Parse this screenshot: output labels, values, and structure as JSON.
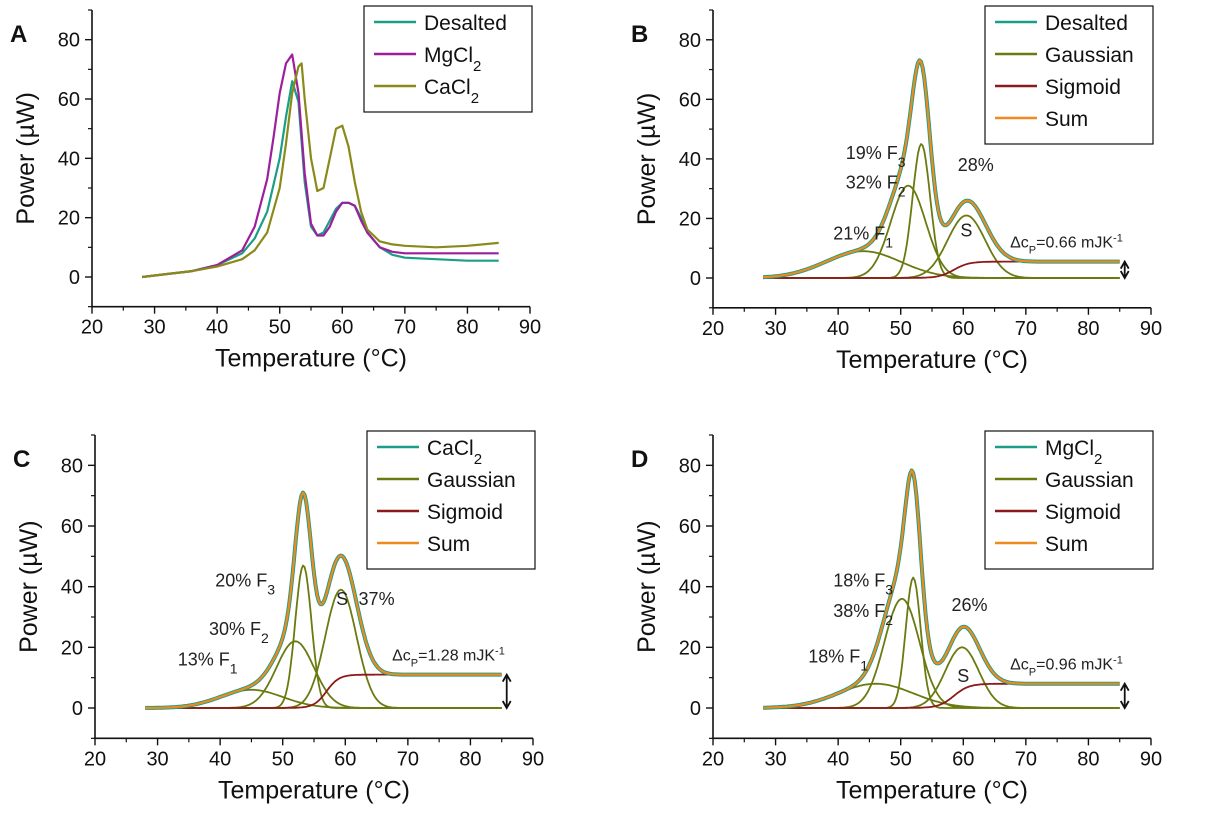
{
  "colors": {
    "desalted": "#1b9e86",
    "mgcl2": "#9c1f9c",
    "cacl2_a": "#8a8a1a",
    "cacl2_line": "#1b9e86",
    "gaussian": "#6b7a10",
    "sigmoid": "#8b1a1a",
    "sum": "#f0891e"
  },
  "chart_data": [
    {
      "panel": "A",
      "type": "line",
      "xlabel": "Temperature (°C)",
      "ylabel": "Power (µW)",
      "xlim": [
        20,
        90
      ],
      "ylim": [
        -10,
        90
      ],
      "xticks": [
        "20",
        "30",
        "40",
        "50",
        "60",
        "70",
        "80",
        "90"
      ],
      "yticks": [
        "0",
        "20",
        "40",
        "60",
        "80"
      ],
      "legend_position": "top-right",
      "legend": [
        "Desalted",
        "MgCl2",
        "CaCl2"
      ],
      "series": [
        {
          "name": "Desalted",
          "color_key": "desalted",
          "x": [
            28,
            32,
            36,
            40,
            44,
            46,
            48,
            50,
            51,
            52,
            53,
            54,
            55,
            56,
            57,
            58,
            59,
            60,
            61,
            62,
            63,
            64,
            66,
            68,
            70,
            75,
            80,
            85
          ],
          "y": [
            0,
            1,
            2,
            4,
            8,
            13,
            22,
            40,
            54,
            66,
            59,
            32,
            17,
            14,
            15,
            19,
            23,
            25,
            25,
            24,
            20,
            15,
            10,
            7.5,
            6.5,
            6,
            5.5,
            5.5
          ]
        },
        {
          "name": "MgCl2",
          "color_key": "mgcl2",
          "x": [
            28,
            32,
            36,
            40,
            44,
            46,
            48,
            49,
            50,
            51,
            52,
            53,
            54,
            55,
            56,
            57,
            58,
            59,
            60,
            61,
            62,
            63,
            64,
            66,
            68,
            70,
            75,
            80,
            85
          ],
          "y": [
            0,
            1,
            2,
            4,
            9,
            17,
            33,
            47,
            62,
            72,
            75,
            62,
            35,
            18,
            14,
            14,
            17,
            22,
            25,
            25,
            24,
            19,
            15,
            10,
            8.5,
            8,
            8,
            8,
            8
          ]
        },
        {
          "name": "CaCl2",
          "color_key": "cacl2_a",
          "x": [
            28,
            32,
            36,
            40,
            44,
            46,
            48,
            50,
            51,
            52,
            53,
            53.5,
            54,
            55,
            56,
            57,
            58,
            59,
            60,
            61,
            62,
            63,
            64,
            66,
            68,
            70,
            75,
            80,
            85
          ],
          "y": [
            0,
            1,
            2,
            3.5,
            6,
            9,
            15,
            30,
            45,
            62,
            71,
            72,
            60,
            40,
            29,
            30,
            40,
            50,
            51,
            44,
            32,
            22,
            16,
            12,
            11,
            10.5,
            10,
            10.5,
            11.5
          ]
        }
      ]
    },
    {
      "panel": "B",
      "type": "line",
      "xlabel": "Temperature (°C)",
      "ylabel": "Power (µW)",
      "xlim": [
        20,
        90
      ],
      "ylim": [
        -10,
        90
      ],
      "xticks": [
        "20",
        "30",
        "40",
        "50",
        "60",
        "70",
        "80",
        "90"
      ],
      "yticks": [
        "0",
        "20",
        "40",
        "60",
        "80"
      ],
      "legend_position": "top-right",
      "legend": [
        "Desalted",
        "Gaussian",
        "Sigmoid",
        "Sum"
      ],
      "sample": "Desalted",
      "gaussians": [
        {
          "label": "21%",
          "name": "F1",
          "mu": 44,
          "sigma": 6,
          "amp": 9
        },
        {
          "label": "32%",
          "name": "F2",
          "mu": 51.2,
          "sigma": 2.8,
          "amp": 31
        },
        {
          "label": "19%",
          "name": "F3",
          "mu": 53.3,
          "sigma": 1.4,
          "amp": 45
        },
        {
          "label": "28%",
          "name": "S",
          "mu": 60.5,
          "sigma": 3,
          "amp": 21
        }
      ],
      "sigmoid": {
        "center": 58.5,
        "width": 1.2,
        "height": 5.5
      },
      "delta_cp": "ΔcP=0.66 mJK⁻¹"
    },
    {
      "panel": "C",
      "type": "line",
      "xlabel": "Temperature (°C)",
      "ylabel": "Power (µW)",
      "xlim": [
        20,
        90
      ],
      "ylim": [
        -10,
        90
      ],
      "xticks": [
        "20",
        "30",
        "40",
        "50",
        "60",
        "70",
        "80",
        "90"
      ],
      "yticks": [
        "0",
        "20",
        "40",
        "60",
        "80"
      ],
      "legend_position": "top-right",
      "legend": [
        "CaCl2",
        "Gaussian",
        "Sigmoid",
        "Sum"
      ],
      "sample": "CaCl2",
      "gaussians": [
        {
          "label": "13%",
          "name": "F1",
          "mu": 45,
          "sigma": 5,
          "amp": 6
        },
        {
          "label": "30%",
          "name": "F2",
          "mu": 52,
          "sigma": 3,
          "amp": 22
        },
        {
          "label": "20%",
          "name": "F3",
          "mu": 53.3,
          "sigma": 1.3,
          "amp": 47
        },
        {
          "label": "37%",
          "name": "S",
          "mu": 59.3,
          "sigma": 2.5,
          "amp": 39
        }
      ],
      "sigmoid": {
        "center": 57,
        "width": 1,
        "height": 11
      },
      "delta_cp": "ΔcP=1.28 mJK⁻¹"
    },
    {
      "panel": "D",
      "type": "line",
      "xlabel": "Temperature (°C)",
      "ylabel": "Power (µW)",
      "xlim": [
        20,
        90
      ],
      "ylim": [
        -10,
        90
      ],
      "xticks": [
        "20",
        "30",
        "40",
        "50",
        "60",
        "70",
        "80",
        "90"
      ],
      "yticks": [
        "0",
        "20",
        "40",
        "60",
        "80"
      ],
      "legend_position": "top-right",
      "legend": [
        "MgCl2",
        "Gaussian",
        "Sigmoid",
        "Sum"
      ],
      "sample": "MgCl2",
      "gaussians": [
        {
          "label": "18%",
          "name": "F1",
          "mu": 46,
          "sigma": 6,
          "amp": 8
        },
        {
          "label": "38%",
          "name": "F2",
          "mu": 50.2,
          "sigma": 2.8,
          "amp": 36
        },
        {
          "label": "18%",
          "name": "F3",
          "mu": 52,
          "sigma": 1.2,
          "amp": 43
        },
        {
          "label": "26%",
          "name": "S",
          "mu": 59.8,
          "sigma": 2.7,
          "amp": 20
        }
      ],
      "sigmoid": {
        "center": 58.5,
        "width": 1.2,
        "height": 8
      },
      "delta_cp": "ΔcP=0.96 mJK⁻¹"
    }
  ]
}
